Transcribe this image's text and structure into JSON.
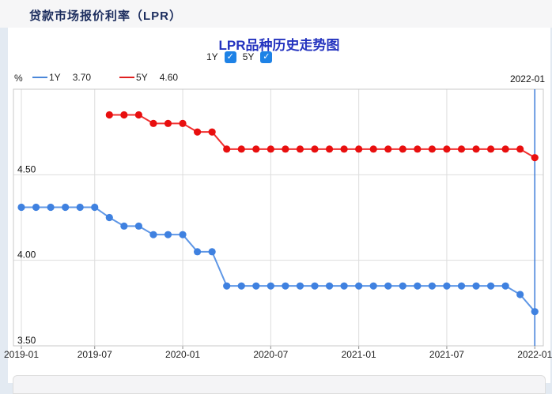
{
  "page": {
    "header_title": "贷款市场报价利率（LPR）"
  },
  "chart": {
    "title": "LPR品种历史走势图",
    "unit_label": "%",
    "cursor_date": "2022-01",
    "toggles": [
      {
        "label": "1Y",
        "checked": true
      },
      {
        "label": "5Y",
        "checked": true
      }
    ],
    "legend": [
      {
        "name": "1Y",
        "value": "3.70",
        "color": "#4b87d9"
      },
      {
        "name": "5Y",
        "value": "4.60",
        "color": "#e02020"
      }
    ]
  },
  "chart_data": {
    "type": "line",
    "title": "LPR品种历史走势图",
    "ylabel": "%",
    "ylim": [
      3.5,
      5.0
    ],
    "y_tick_labels": [
      "3.50",
      "4.00",
      "4.50"
    ],
    "y_ticks": [
      3.5,
      4.0,
      4.5
    ],
    "y_gridlines": [
      4.0,
      4.5
    ],
    "x_tick_labels": [
      "2019-01",
      "2019-07",
      "2020-01",
      "2020-07",
      "2021-01",
      "2021-07",
      "2022-01"
    ],
    "x_tick_indices": [
      0,
      5,
      11,
      17,
      23,
      29,
      35
    ],
    "crosshair_index": 35,
    "crosshair_color": "#3d7cd8",
    "grid_color": "#dddddd",
    "frame_color": "#c8c8c8",
    "x": [
      "2019-01",
      "2019-02",
      "2019-03",
      "2019-04",
      "2019-06",
      "2019-07",
      "2019-08",
      "2019-09",
      "2019-10",
      "2019-11",
      "2019-12",
      "2020-01",
      "2020-02",
      "2020-03",
      "2020-04",
      "2020-05",
      "2020-06",
      "2020-07",
      "2020-08",
      "2020-09",
      "2020-10",
      "2020-11",
      "2020-12",
      "2021-01",
      "2021-02",
      "2021-03",
      "2021-04",
      "2021-05",
      "2021-06",
      "2021-07",
      "2021-08",
      "2021-09",
      "2021-10",
      "2021-11",
      "2021-12",
      "2022-01"
    ],
    "series": [
      {
        "name": "1Y",
        "line_color": "#5f97e6",
        "dot_color": "#3f81e0",
        "values": [
          4.31,
          4.31,
          4.31,
          4.31,
          4.31,
          4.31,
          4.25,
          4.2,
          4.2,
          4.15,
          4.15,
          4.15,
          4.05,
          4.05,
          3.85,
          3.85,
          3.85,
          3.85,
          3.85,
          3.85,
          3.85,
          3.85,
          3.85,
          3.85,
          3.85,
          3.85,
          3.85,
          3.85,
          3.85,
          3.85,
          3.85,
          3.85,
          3.85,
          3.85,
          3.8,
          3.7
        ]
      },
      {
        "name": "5Y",
        "line_color": "#f03030",
        "dot_color": "#e80f0f",
        "values": [
          null,
          null,
          null,
          null,
          null,
          null,
          4.85,
          4.85,
          4.85,
          4.8,
          4.8,
          4.8,
          4.75,
          4.75,
          4.65,
          4.65,
          4.65,
          4.65,
          4.65,
          4.65,
          4.65,
          4.65,
          4.65,
          4.65,
          4.65,
          4.65,
          4.65,
          4.65,
          4.65,
          4.65,
          4.65,
          4.65,
          4.65,
          4.65,
          4.65,
          4.6
        ]
      }
    ]
  }
}
